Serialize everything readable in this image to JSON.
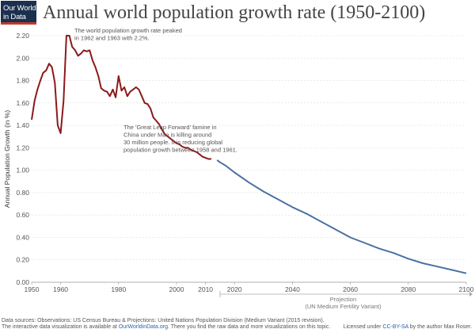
{
  "logo": {
    "line1": "Our World",
    "line2": "in Data"
  },
  "chart_data": {
    "type": "line",
    "title": "Annual world population growth rate (1950-2100)",
    "ylabel": "Annual Population Growth (in %)",
    "xlabel": "",
    "xlim": [
      1950,
      2100
    ],
    "ylim": [
      0,
      2.2
    ],
    "x_ticks": [
      1950,
      1960,
      1980,
      2000,
      2010,
      2020,
      2040,
      2060,
      2080,
      2100
    ],
    "y_ticks": [
      "0.00",
      "0.20",
      "0.40",
      "0.60",
      "0.80",
      "1.00",
      "1.20",
      "1.40",
      "1.60",
      "1.80",
      "2.00",
      "2.20"
    ],
    "grid": true,
    "series": [
      {
        "color": "#8b1a1a",
        "points": [
          [
            1950,
            1.45
          ],
          [
            1951,
            1.62
          ],
          [
            1952,
            1.72
          ],
          [
            1953,
            1.8
          ],
          [
            1954,
            1.87
          ],
          [
            1955,
            1.89
          ],
          [
            1956,
            1.95
          ],
          [
            1957,
            1.92
          ],
          [
            1958,
            1.78
          ],
          [
            1959,
            1.4
          ],
          [
            1960,
            1.33
          ],
          [
            1961,
            1.62
          ],
          [
            1962,
            2.2
          ],
          [
            1963,
            2.2
          ],
          [
            1964,
            2.1
          ],
          [
            1965,
            2.07
          ],
          [
            1966,
            2.02
          ],
          [
            1967,
            2.04
          ],
          [
            1968,
            2.07
          ],
          [
            1969,
            2.06
          ],
          [
            1970,
            2.07
          ],
          [
            1971,
            1.98
          ],
          [
            1972,
            1.92
          ],
          [
            1973,
            1.84
          ],
          [
            1974,
            1.73
          ],
          [
            1975,
            1.71
          ],
          [
            1976,
            1.7
          ],
          [
            1977,
            1.66
          ],
          [
            1978,
            1.72
          ],
          [
            1979,
            1.65
          ],
          [
            1980,
            1.84
          ],
          [
            1981,
            1.71
          ],
          [
            1982,
            1.74
          ],
          [
            1983,
            1.66
          ],
          [
            1984,
            1.7
          ],
          [
            1985,
            1.72
          ],
          [
            1986,
            1.74
          ],
          [
            1987,
            1.72
          ],
          [
            1988,
            1.66
          ],
          [
            1989,
            1.6
          ],
          [
            1990,
            1.59
          ],
          [
            1991,
            1.55
          ],
          [
            1992,
            1.47
          ],
          [
            1993,
            1.44
          ],
          [
            1994,
            1.41
          ],
          [
            1995,
            1.36
          ],
          [
            1996,
            1.32
          ],
          [
            1997,
            1.3
          ],
          [
            1998,
            1.28
          ],
          [
            1999,
            1.26
          ],
          [
            2000,
            1.24
          ],
          [
            2001,
            1.23
          ],
          [
            2002,
            1.21
          ],
          [
            2003,
            1.2
          ],
          [
            2004,
            1.2
          ],
          [
            2005,
            1.18
          ],
          [
            2006,
            1.17
          ],
          [
            2007,
            1.16
          ],
          [
            2008,
            1.14
          ],
          [
            2009,
            1.12
          ],
          [
            2010,
            1.11
          ],
          [
            2011,
            1.1
          ],
          [
            2012,
            1.1
          ]
        ]
      },
      {
        "color": "#4a71a1",
        "points": [
          [
            2014,
            1.09
          ],
          [
            2015,
            1.07
          ],
          [
            2017,
            1.04
          ],
          [
            2020,
            0.98
          ],
          [
            2025,
            0.89
          ],
          [
            2030,
            0.81
          ],
          [
            2035,
            0.74
          ],
          [
            2040,
            0.67
          ],
          [
            2045,
            0.61
          ],
          [
            2050,
            0.54
          ],
          [
            2055,
            0.47
          ],
          [
            2060,
            0.4
          ],
          [
            2065,
            0.35
          ],
          [
            2070,
            0.3
          ],
          [
            2075,
            0.26
          ],
          [
            2080,
            0.21
          ],
          [
            2085,
            0.17
          ],
          [
            2090,
            0.14
          ],
          [
            2095,
            0.11
          ],
          [
            2100,
            0.08
          ]
        ]
      }
    ],
    "annotations": [
      {
        "lines": [
          "The world population growth rate peaked",
          "in 1962 and 1963 with 2.2%."
        ]
      },
      {
        "lines": [
          "The 'Great Leap Forward' famine in",
          "China under Mao is killing around",
          "30 million people. It is reducing global",
          "population growth between 1958 and 1961."
        ]
      }
    ],
    "projection_label": [
      "Projection",
      "(UN Medium Fertility Variant)"
    ]
  },
  "footer": {
    "sources": "Data sources: Observations: US Census Bureau & Projections: United Nations Population Division (Medium Variant (2015 revision).",
    "line2_pre": "The interactive data visualization is available at ",
    "line2_link": "OurWorldinData.org",
    "line2_post": ". There you find the raw data and more visualizations on this topic.",
    "license_pre": "Licensed under ",
    "license_link": "CC-BY-SA",
    "license_post": " by the author Max Roser."
  }
}
